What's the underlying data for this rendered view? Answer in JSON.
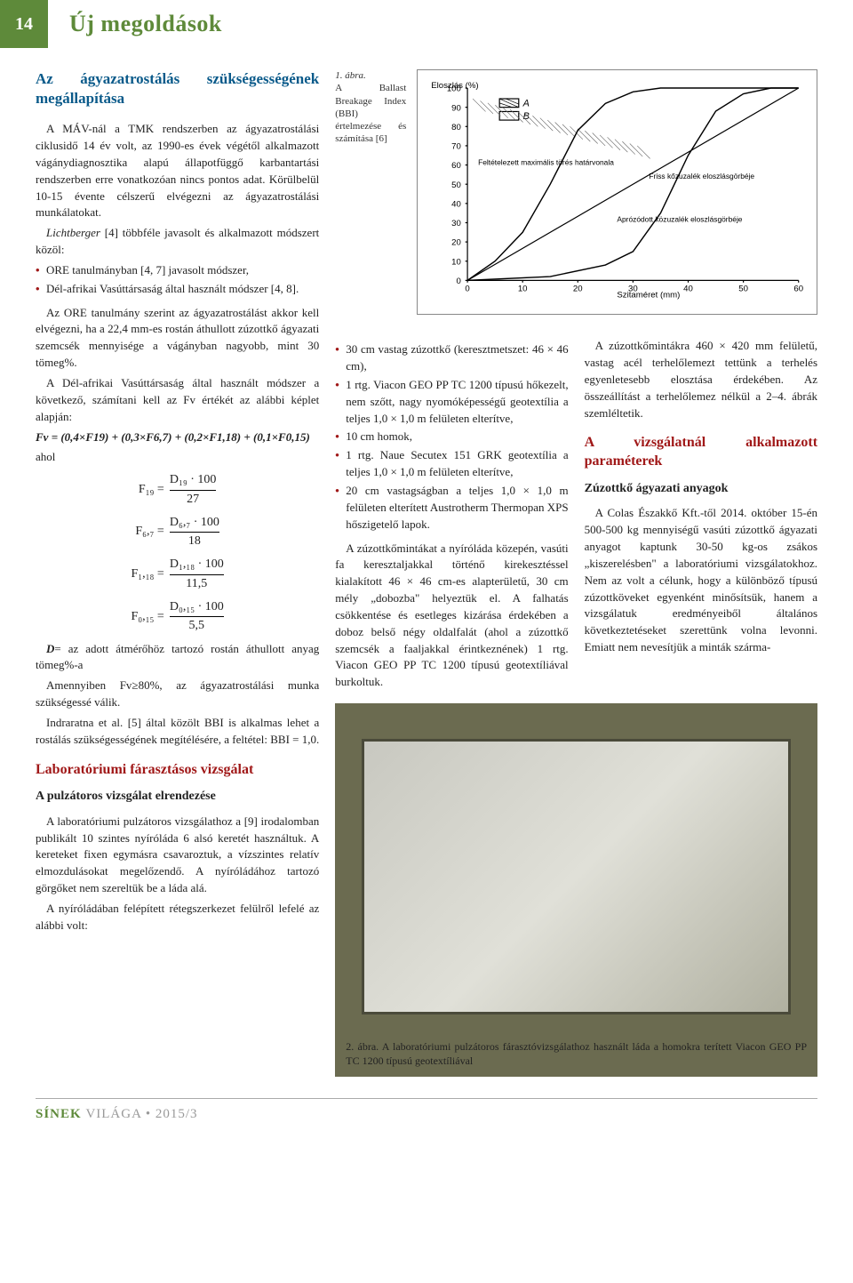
{
  "header": {
    "page_number": "14",
    "section": "Új megoldások"
  },
  "col1": {
    "h2": "Az ágyazatrostálás szükségességének megállapítása",
    "p1": "A MÁV-nál a TMK rendszerben az ágyazatrostálási ciklusidő 14 év volt, az 1990-es évek végétől alkalmazott vágánydiagnosztika alapú állapotfüggő karbantartási rendszerben erre vonatkozóan nincs pontos adat. Körülbelül 10-15 évente célszerű elvégezni az ágyazatrostálási munkálatokat.",
    "p2_pre": "Lichtberger",
    "p2": " [4] többféle javasolt és alkalmazott módszert közöl:",
    "bullets1": [
      "ORE tanulmányban [4, 7] javasolt módszer,",
      "Dél-afrikai Vasúttársaság által használt módszer [4, 8]."
    ],
    "p3": "Az ORE tanulmány szerint az ágyazatrostálást akkor kell elvégezni, ha a 22,4 mm-es rostán áthullott zúzottkő ágyazati szemcsék mennyisége a vágányban nagyobb, mint 30 tömeg%.",
    "p4": "A Dél-afrikai Vasúttársaság által használt módszer a következő, számítani kell az Fv értékét az alábbi képlet alapján:",
    "p4b": "Fv = (0,4×F19) + (0,3×F6,7) + (0,2×F1,18) + (0,1×F0,15)",
    "p4c": "ahol",
    "formulas": [
      {
        "lhs": "F₁₉ =",
        "num": "D₁₉ · 100",
        "den": "27"
      },
      {
        "lhs": "F₆,₇ =",
        "num": "D₆,₇ · 100",
        "den": "18"
      },
      {
        "lhs": "F₁,₁₈ =",
        "num": "D₁,₁₈ · 100",
        "den": "11,5"
      },
      {
        "lhs": "F₀,₁₅ =",
        "num": "D₀,₁₅ · 100",
        "den": "5,5"
      }
    ],
    "p5a": "D",
    "p5b": "= az adott átmérőhöz tartozó rostán áthullott anyag tömeg%-a",
    "p6": "Amennyiben Fv≥80%, az ágyazatrostálási munka szükségessé válik.",
    "p7": "Indraratna et al. [5] által közölt BBI is alkalmas lehet a rostálás szükségességének megítélésére, a feltétel: BBI = 1,0.",
    "h3a": "Laboratóriumi fárasztásos vizsgálat",
    "h4a": "A pulzátoros vizsgálat elrendezése",
    "p8": "A laboratóriumi pulzátoros vizsgálathoz a [9] irodalomban publikált 10 szintes nyíróláda 6 alsó keretét használtuk. A kereteket fixen egymásra csavaroztuk, a vízszintes relatív elmozdulásokat megelőzendő. A nyíróládához tartozó görgőket nem szereltük be a láda alá.",
    "p9": "A nyíróládában felépített rétegszerkezet felülről lefelé az alábbi volt:"
  },
  "col2": {
    "caption1_label": "1. ábra.",
    "caption1": "A Ballast Breakage Index (BBI) értelmezése és számítása [6]",
    "bullets2": [
      "30 cm vastag zúzottkő (keresztmetszet: 46 × 46 cm),",
      "1 rtg. Viacon GEO PP TC 1200 típusú hőkezelt, nem szőtt, nagy nyomóképességű geotextília a teljes 1,0 × 1,0 m felületen elterítve,",
      "10 cm homok,",
      "1 rtg. Naue Secutex 151 GRK geotextília a teljes 1,0 × 1,0 m felületen elterítve,",
      "20 cm vastagságban a teljes 1,0 × 1,0 m felületen elterített Austrotherm Thermopan XPS hőszigetelő lapok."
    ],
    "p1": "A zúzottkőmintákat a nyíróláda közepén, vasúti fa keresztaljakkal történő kirekesztéssel kialakított 46 × 46 cm-es alapterületű, 30 cm mély „dobozba\" helyeztük el. A falhatás csökkentése és esetleges kizárása érdekében a doboz belső négy oldalfalát (ahol a zúzottkő szemcsék a faaljakkal érintkeznének) 1 rtg. Viacon GEO PP TC 1200 típusú geotextíliával burkoltuk."
  },
  "col3": {
    "p1": "A zúzottkőmintákra 460 × 420 mm felületű, vastag acél terhelőlemezt tettünk a terhelés egyenletesebb elosztása érdekében. Az összeállítást a terhelőlemez nélkül a 2–4. ábrák szemléltetik.",
    "h3a": "A vizsgálatnál alkalmazott paraméterek",
    "h4a": "Zúzottkő ágyazati anyagok",
    "p2": "A Colas Északkő Kft.-től 2014. október 15-én 500-500 kg mennyiségű vasúti zúzottkő ágyazati anyagot kaptunk 30-50 kg-os zsákos „kiszerelésben\" a laboratóriumi vizsgálatokhoz. Nem az volt a célunk, hogy a különböző típusú zúzottköveket egyenként minősítsük, hanem a vizsgálatuk eredményeiből általános következtetéseket szerettünk volna levonni. Emiatt nem nevesítjük a minták szárma-"
  },
  "chart": {
    "type": "line",
    "y_label": "Eloszlás (%)",
    "x_label": "Szitaméret (mm)",
    "ylim": [
      0,
      100
    ],
    "ytick_step": 10,
    "xticks": [
      0,
      10,
      20,
      30,
      40,
      50,
      60
    ],
    "legend": {
      "A": "A",
      "B": "B"
    },
    "annotations": [
      "Feltételezett maximális törés határvonala",
      "Friss kőzuzalék eloszlásgörbéje",
      "Aprózódott közuzalék eloszlásgörbéje"
    ],
    "curve_A": [
      [
        0,
        0
      ],
      [
        5,
        10
      ],
      [
        10,
        25
      ],
      [
        15,
        50
      ],
      [
        20,
        78
      ],
      [
        25,
        92
      ],
      [
        30,
        98
      ],
      [
        35,
        100
      ],
      [
        60,
        100
      ]
    ],
    "curve_B": [
      [
        0,
        0
      ],
      [
        15,
        2
      ],
      [
        25,
        8
      ],
      [
        30,
        15
      ],
      [
        35,
        35
      ],
      [
        40,
        65
      ],
      [
        45,
        88
      ],
      [
        50,
        97
      ],
      [
        55,
        100
      ],
      [
        60,
        100
      ]
    ],
    "hatch_color": "#555",
    "line_color": "#000",
    "grid_color": "#ccc",
    "background": "#fff",
    "font_size": 8
  },
  "photo": {
    "caption_label": "2. ábra.",
    "caption": "A laboratóriumi pulzátoros fárasztóvizsgálathoz használt láda a homokra terített Viacon GEO PP TC 1200 típusú geotextíliával"
  },
  "footer": {
    "green": "SÍNEK ",
    "grey": "VILÁGA • ",
    "issue": "2015/3"
  }
}
